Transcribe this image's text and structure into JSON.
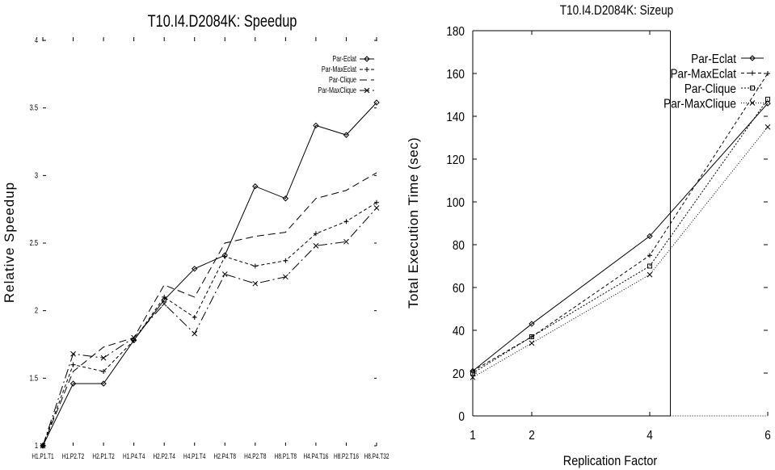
{
  "chart_data": [
    {
      "type": "line",
      "title": "T10.I4.D2084K: Speedup",
      "xlabel": "",
      "ylabel": "Relative Speedup",
      "ylim": [
        1,
        4
      ],
      "yticks": [
        "1",
        "1.5",
        "2",
        "2.5",
        "3",
        "3.5",
        "4"
      ],
      "categories": [
        "H1.P1.T1",
        "H1.P2.T2",
        "H2.P1.T2",
        "H1.P4.T4",
        "H2.P2.T4",
        "H4.P1.T4",
        "H2.P4.T8",
        "H4.P2.T8",
        "H8.P1.T8",
        "H4.P4.T16",
        "H8.P2.T16",
        "H8.P4.T32"
      ],
      "legend_position": "top-right",
      "series": [
        {
          "name": "Par-Eclat",
          "marker": "diamond",
          "dash": "",
          "values": [
            1.0,
            1.46,
            1.46,
            1.78,
            2.08,
            2.31,
            2.41,
            2.92,
            2.83,
            3.37,
            3.3,
            3.54
          ]
        },
        {
          "name": "Par-MaxEclat",
          "marker": "plus",
          "dash": "4,3",
          "values": [
            1.0,
            1.6,
            1.55,
            1.78,
            2.1,
            1.95,
            2.4,
            2.33,
            2.37,
            2.57,
            2.66,
            2.8
          ]
        },
        {
          "name": "Par-Clique",
          "marker": "none",
          "dash": "9,5",
          "values": [
            1.0,
            1.55,
            1.73,
            1.8,
            2.19,
            2.1,
            2.5,
            2.55,
            2.58,
            2.83,
            2.89,
            3.02
          ]
        },
        {
          "name": "Par-MaxClique",
          "marker": "x",
          "dash": "12,4,2,4",
          "values": [
            1.0,
            1.68,
            1.65,
            1.8,
            2.05,
            1.83,
            2.27,
            2.2,
            2.25,
            2.48,
            2.51,
            2.76
          ]
        }
      ]
    },
    {
      "type": "line",
      "title": "T10.I4.D2084K: Sizeup",
      "xlabel": "Replication Factor",
      "ylabel": "Total Execution Time (sec)",
      "xlim": [
        1,
        6
      ],
      "ylim": [
        0,
        180
      ],
      "xticks": [
        "1",
        "2",
        "4",
        "6"
      ],
      "yticks": [
        "0",
        "20",
        "40",
        "60",
        "80",
        "100",
        "120",
        "140",
        "160",
        "180"
      ],
      "x": [
        1,
        2,
        4,
        6
      ],
      "legend_position": "top-right",
      "series": [
        {
          "name": "Par-Eclat",
          "marker": "diamond",
          "dash": "",
          "values": [
            21,
            43,
            84,
            146
          ]
        },
        {
          "name": "Par-MaxEclat",
          "marker": "plus",
          "dash": "4,3",
          "values": [
            21,
            37,
            75,
            160
          ]
        },
        {
          "name": "Par-Clique",
          "marker": "square",
          "dash": "2,2",
          "values": [
            20,
            37,
            70,
            148
          ]
        },
        {
          "name": "Par-MaxClique",
          "marker": "x",
          "dash": "1,2",
          "values": [
            18,
            34,
            66,
            135
          ]
        }
      ]
    }
  ]
}
